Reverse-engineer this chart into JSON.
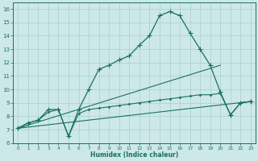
{
  "series": [
    {
      "x": [
        0,
        1,
        2,
        3,
        4,
        5,
        6,
        7,
        8,
        9,
        10,
        11,
        12,
        13,
        14,
        15,
        16,
        17,
        18,
        19,
        20,
        21,
        22,
        23
      ],
      "y": [
        7.1,
        7.5,
        7.7,
        8.5,
        8.5,
        6.5,
        8.5,
        10.0,
        11.5,
        11.8,
        12.2,
        12.5,
        13.3,
        14.0,
        15.5,
        15.8,
        15.5,
        14.2,
        13.0,
        11.8,
        9.8,
        8.1,
        9.0,
        9.1
      ],
      "color": "#1a7060",
      "marker": "+",
      "linewidth": 0.9,
      "markersize": 4
    },
    {
      "x": [
        0,
        1,
        2,
        3,
        4,
        5,
        6,
        7,
        8,
        9,
        10,
        11,
        12,
        13,
        14,
        15,
        16,
        17,
        18,
        19,
        20,
        21,
        22,
        23
      ],
      "y": [
        7.1,
        7.5,
        7.7,
        8.3,
        8.5,
        6.5,
        8.2,
        8.5,
        8.6,
        8.7,
        8.8,
        8.9,
        9.0,
        9.1,
        9.2,
        9.3,
        9.4,
        9.5,
        9.6,
        9.6,
        9.7,
        8.1,
        9.0,
        9.1
      ],
      "color": "#1a7060",
      "marker": "D",
      "linewidth": 0.8,
      "markersize": 1.5
    },
    {
      "x": [
        0,
        23
      ],
      "y": [
        7.1,
        9.1
      ],
      "color": "#1a7060",
      "linewidth": 0.8
    },
    {
      "x": [
        0,
        20
      ],
      "y": [
        7.1,
        11.8
      ],
      "color": "#1a7060",
      "linewidth": 0.8
    }
  ],
  "xlabel": "Humidex (Indice chaleur)",
  "xlim": [
    -0.5,
    23.5
  ],
  "ylim": [
    6,
    16.5
  ],
  "yticks": [
    6,
    7,
    8,
    9,
    10,
    11,
    12,
    13,
    14,
    15,
    16
  ],
  "xticks": [
    0,
    1,
    2,
    3,
    4,
    5,
    6,
    7,
    8,
    9,
    10,
    11,
    12,
    13,
    14,
    15,
    16,
    17,
    18,
    19,
    20,
    21,
    22,
    23
  ],
  "bg_color": "#cde8e8",
  "grid_color": "#aacfcf",
  "line_color": "#1a7060",
  "axis_color": "#1a7060",
  "tick_color": "#1a7060",
  "xlabel_color": "#1a7060"
}
